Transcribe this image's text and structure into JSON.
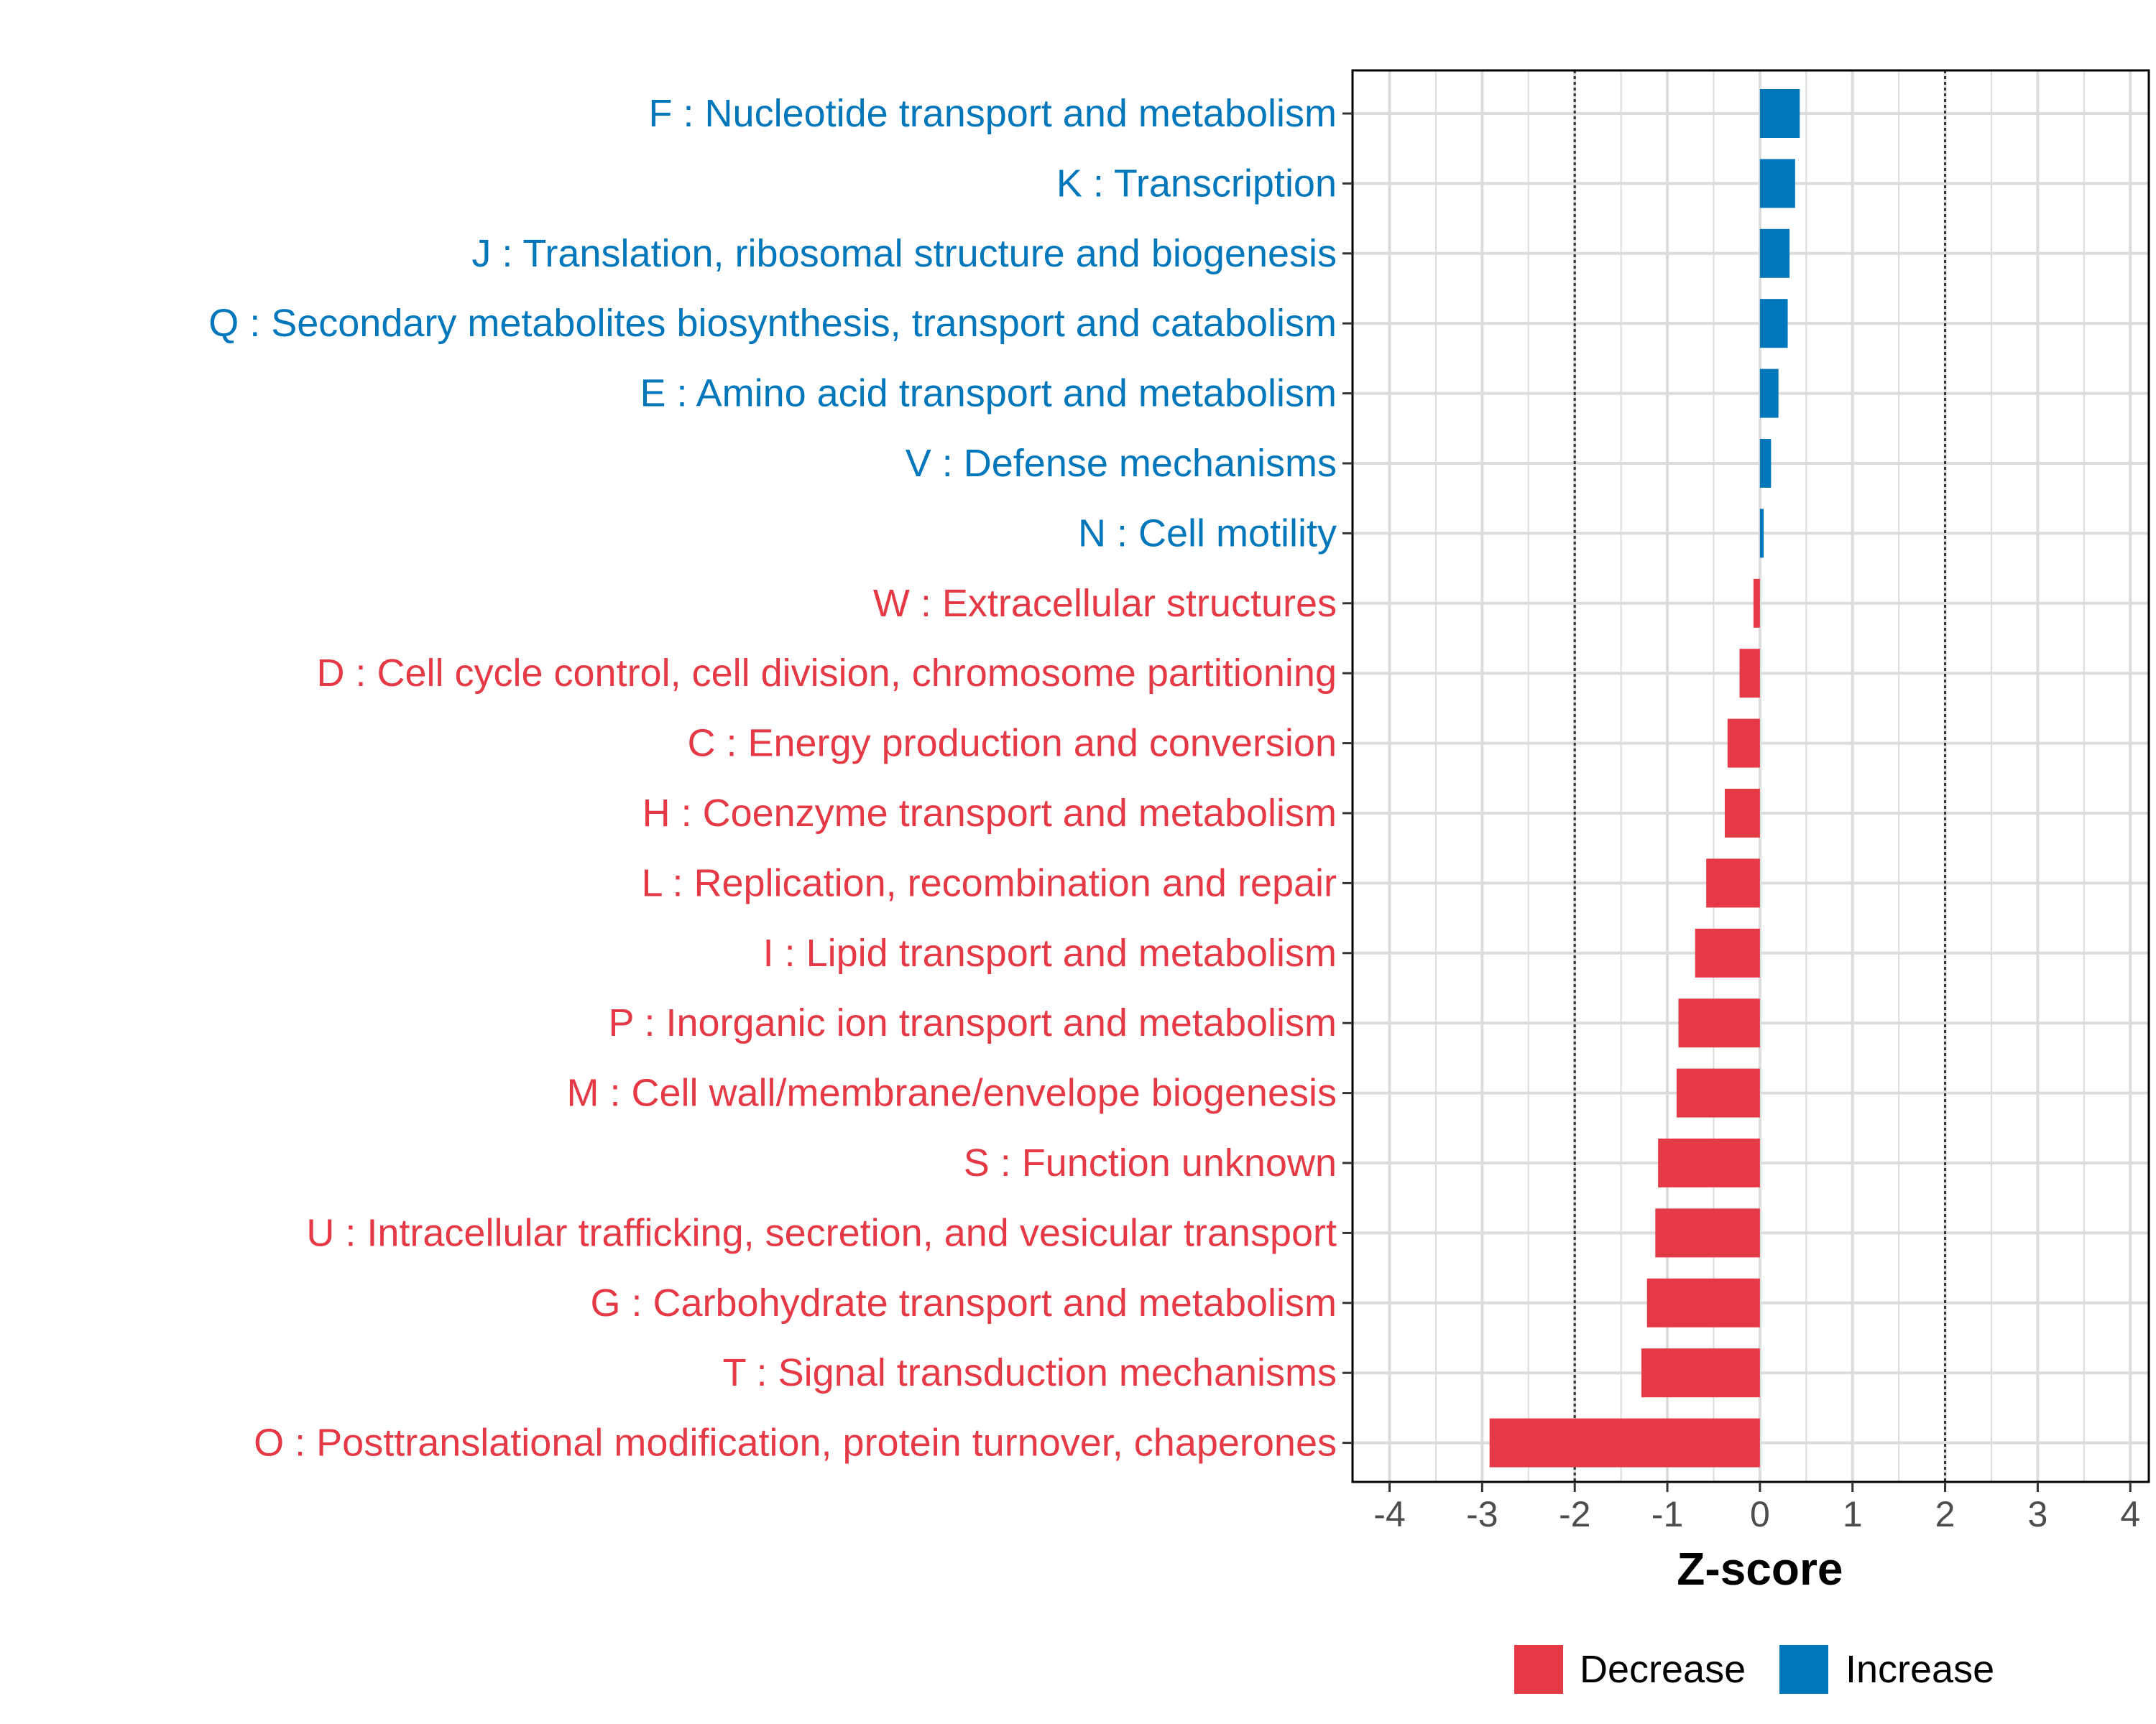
{
  "chart_data": {
    "type": "bar",
    "orientation": "horizontal",
    "title": "",
    "xlabel": "Z-score",
    "ylabel": "",
    "xlim": [
      -4.4,
      4.2
    ],
    "xticks": [
      -4,
      -3,
      -2,
      -1,
      0,
      1,
      2,
      3,
      4
    ],
    "xtick_labels": [
      "-4",
      "-3",
      "-2",
      "-1",
      "0",
      "1",
      "2",
      "3",
      "4"
    ],
    "reference_lines": [
      -2,
      2
    ],
    "grid": true,
    "legend_position": "bottom",
    "colors": {
      "Decrease": "#e63946",
      "Increase": "#0077bb"
    },
    "legend": [
      {
        "name": "Decrease",
        "color": "#e63946"
      },
      {
        "name": "Increase",
        "color": "#0077bb"
      }
    ],
    "categories": [
      "F : Nucleotide transport and metabolism",
      "K : Transcription",
      "J : Translation, ribosomal structure and biogenesis",
      "Q : Secondary metabolites biosynthesis, transport and catabolism",
      "E : Amino acid transport and metabolism",
      "V : Defense mechanisms",
      "N : Cell motility",
      "W : Extracellular structures",
      "D : Cell cycle control, cell division, chromosome partitioning",
      "C : Energy production and conversion",
      "H : Coenzyme transport and metabolism",
      "L : Replication, recombination and repair",
      "I : Lipid transport and metabolism",
      "P : Inorganic ion transport and metabolism",
      "M : Cell wall/membrane/envelope biogenesis",
      "S : Function unknown",
      "U : Intracellular trafficking, secretion, and vesicular transport",
      "G : Carbohydrate transport and metabolism",
      "T : Signal transduction mechanisms",
      "O : Posttranslational modification, protein turnover, chaperones"
    ],
    "values": [
      0.43,
      0.38,
      0.32,
      0.3,
      0.2,
      0.12,
      0.04,
      -0.07,
      -0.22,
      -0.35,
      -0.38,
      -0.58,
      -0.7,
      -0.88,
      -0.9,
      -1.1,
      -1.13,
      -1.22,
      -1.28,
      -2.92
    ],
    "groups": [
      "Increase",
      "Increase",
      "Increase",
      "Increase",
      "Increase",
      "Increase",
      "Increase",
      "Decrease",
      "Decrease",
      "Decrease",
      "Decrease",
      "Decrease",
      "Decrease",
      "Decrease",
      "Decrease",
      "Decrease",
      "Decrease",
      "Decrease",
      "Decrease",
      "Decrease"
    ]
  }
}
